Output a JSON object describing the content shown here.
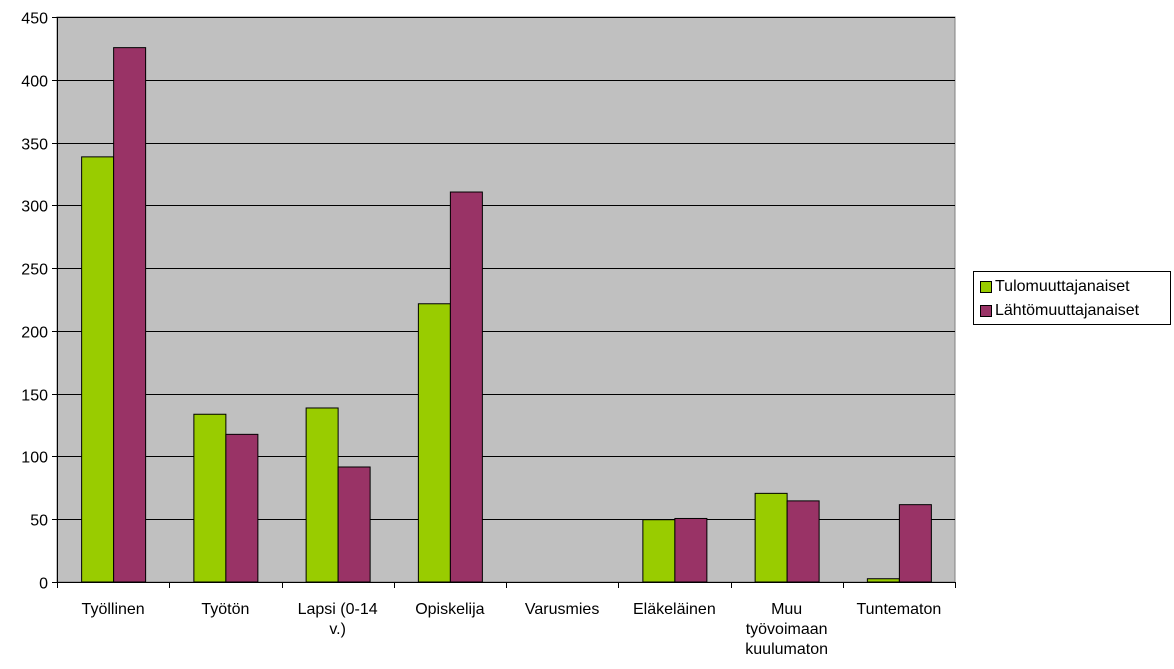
{
  "colors": {
    "plot_background": "#c0c0c0",
    "gridline": "#000000",
    "series_1": "#99cc00",
    "series_2": "#993366"
  },
  "chart_data": {
    "type": "bar",
    "title": "",
    "xlabel": "",
    "ylabel": "",
    "ylim": [
      0,
      450
    ],
    "yticks": [
      "0",
      "50",
      "100",
      "150",
      "200",
      "250",
      "300",
      "350",
      "400",
      "450"
    ],
    "grid": true,
    "legend_position": "right",
    "categories": [
      [
        "Työllinen"
      ],
      [
        "Työtön"
      ],
      [
        "Lapsi (0-14",
        "v.)"
      ],
      [
        "Opiskelija"
      ],
      [
        "Varusmies"
      ],
      [
        "Eläkeläinen"
      ],
      [
        "Muu",
        "työvoimaan",
        "kuulumaton"
      ],
      [
        "Tuntematon"
      ]
    ],
    "series": [
      {
        "name": "Tulomuuttajanaiset",
        "color": "#99cc00",
        "values": [
          339,
          134,
          139,
          222,
          0,
          50,
          71,
          3
        ]
      },
      {
        "name": "Lähtömuuttajanaiset",
        "color": "#993366",
        "values": [
          426,
          118,
          92,
          311,
          0,
          51,
          65,
          62
        ]
      }
    ]
  }
}
